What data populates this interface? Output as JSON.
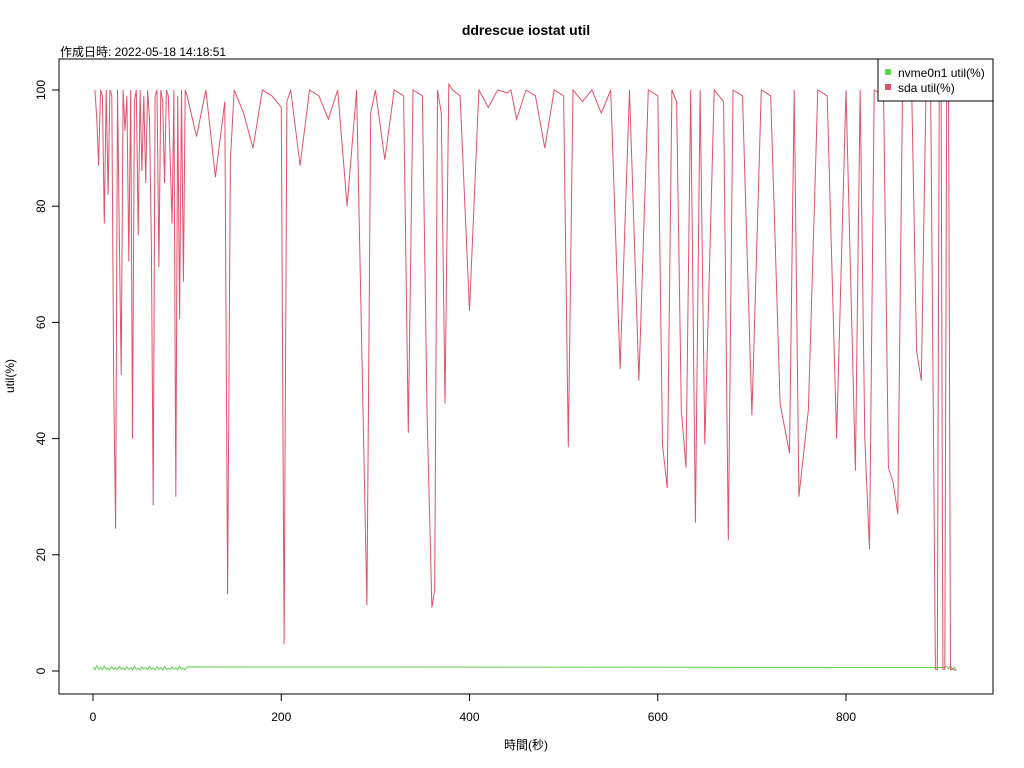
{
  "chart_data": {
    "type": "line",
    "title": "ddrescue iostat util",
    "subtitle": "作成日時: 2022-05-18 14:18:51",
    "xlabel": "時間(秒)",
    "ylabel": "util(%)",
    "xlim": [
      0,
      918
    ],
    "ylim": [
      0,
      100
    ],
    "x_ticks": [
      "0",
      "200",
      "400",
      "600",
      "800"
    ],
    "y_ticks": [
      "0",
      "20",
      "40",
      "60",
      "80",
      "100"
    ],
    "legend_position": "top-right",
    "series": [
      {
        "name": "nvme0n1 util(%)",
        "color": "#61d04f",
        "description": "near zero with small spikes",
        "points": [
          [
            0,
            0.7
          ],
          [
            2,
            0.2
          ],
          [
            4,
            0.9
          ],
          [
            6,
            0.3
          ],
          [
            8,
            0.6
          ],
          [
            10,
            0.2
          ],
          [
            12,
            0.8
          ],
          [
            14,
            0.3
          ],
          [
            16,
            0.5
          ],
          [
            18,
            0.2
          ],
          [
            20,
            0.7
          ],
          [
            22,
            0.3
          ],
          [
            24,
            0.6
          ],
          [
            26,
            0.2
          ],
          [
            28,
            0.8
          ],
          [
            30,
            0.3
          ],
          [
            32,
            0.5
          ],
          [
            34,
            0.2
          ],
          [
            36,
            0.7
          ],
          [
            38,
            0.3
          ],
          [
            40,
            0.6
          ],
          [
            42,
            0.2
          ],
          [
            44,
            0.8
          ],
          [
            46,
            0.3
          ],
          [
            48,
            0.5
          ],
          [
            50,
            0.2
          ],
          [
            52,
            0.7
          ],
          [
            54,
            0.3
          ],
          [
            56,
            0.6
          ],
          [
            58,
            0.2
          ],
          [
            60,
            0.8
          ],
          [
            62,
            0.3
          ],
          [
            64,
            0.5
          ],
          [
            66,
            0.2
          ],
          [
            68,
            0.7
          ],
          [
            70,
            0.3
          ],
          [
            72,
            0.6
          ],
          [
            74,
            0.2
          ],
          [
            76,
            0.8
          ],
          [
            78,
            0.3
          ],
          [
            80,
            0.5
          ],
          [
            82,
            0.2
          ],
          [
            84,
            0.7
          ],
          [
            86,
            0.3
          ],
          [
            88,
            0.6
          ],
          [
            90,
            0.2
          ],
          [
            92,
            0.8
          ],
          [
            94,
            0.3
          ],
          [
            96,
            0.5
          ],
          [
            98,
            0.2
          ],
          [
            100,
            0.7
          ],
          [
            905,
            0.6
          ],
          [
            907,
            0.8
          ],
          [
            909,
            0.4
          ],
          [
            911,
            0.9
          ],
          [
            913,
            0.3
          ],
          [
            915,
            0.6
          ],
          [
            917,
            0.2
          ]
        ]
      },
      {
        "name": "sda util(%)",
        "color": "#df536b",
        "description": "mostly 100 with frequent sharp dips",
        "points": [
          [
            2,
            100
          ],
          [
            4,
            95
          ],
          [
            6,
            87
          ],
          [
            8,
            100
          ],
          [
            10,
            99
          ],
          [
            12,
            77
          ],
          [
            14,
            100
          ],
          [
            16,
            82
          ],
          [
            18,
            100
          ],
          [
            20,
            99
          ],
          [
            22,
            49.5
          ],
          [
            24,
            24.5
          ],
          [
            26,
            100
          ],
          [
            28,
            74
          ],
          [
            30,
            51
          ],
          [
            32,
            100
          ],
          [
            34,
            93
          ],
          [
            36,
            99
          ],
          [
            38,
            70.5
          ],
          [
            40,
            100
          ],
          [
            42,
            40
          ],
          [
            44,
            98
          ],
          [
            46,
            100
          ],
          [
            48,
            75
          ],
          [
            50,
            100
          ],
          [
            52,
            86
          ],
          [
            54,
            99
          ],
          [
            56,
            84
          ],
          [
            58,
            100
          ],
          [
            60,
            95
          ],
          [
            62,
            73
          ],
          [
            64,
            28.5
          ],
          [
            66,
            99
          ],
          [
            68,
            100
          ],
          [
            70,
            69.5
          ],
          [
            72,
            100
          ],
          [
            74,
            98
          ],
          [
            76,
            84
          ],
          [
            78,
            100
          ],
          [
            80,
            99
          ],
          [
            82,
            88
          ],
          [
            84,
            77
          ],
          [
            86,
            100
          ],
          [
            88,
            30
          ],
          [
            90,
            99
          ],
          [
            92,
            60.5
          ],
          [
            94,
            100
          ],
          [
            96,
            67
          ],
          [
            98,
            100
          ],
          [
            100,
            99
          ],
          [
            110,
            92
          ],
          [
            120,
            100
          ],
          [
            130,
            85
          ],
          [
            140,
            98
          ],
          [
            143,
            13.2
          ],
          [
            146,
            88
          ],
          [
            150,
            100
          ],
          [
            160,
            96
          ],
          [
            170,
            90
          ],
          [
            180,
            100
          ],
          [
            190,
            99
          ],
          [
            200,
            97
          ],
          [
            203,
            4.6
          ],
          [
            206,
            98
          ],
          [
            210,
            100
          ],
          [
            220,
            87
          ],
          [
            230,
            100
          ],
          [
            240,
            99
          ],
          [
            250,
            95
          ],
          [
            260,
            100
          ],
          [
            270,
            80
          ],
          [
            280,
            100
          ],
          [
            291,
            11.3
          ],
          [
            295,
            96
          ],
          [
            300,
            100
          ],
          [
            310,
            88
          ],
          [
            320,
            100
          ],
          [
            330,
            99
          ],
          [
            335,
            41
          ],
          [
            340,
            100
          ],
          [
            350,
            99
          ],
          [
            355,
            44
          ],
          [
            360,
            10.9
          ],
          [
            363,
            14
          ],
          [
            366,
            100
          ],
          [
            370,
            96
          ],
          [
            374,
            46
          ],
          [
            378,
            101
          ],
          [
            382,
            100
          ],
          [
            390,
            99
          ],
          [
            400,
            62
          ],
          [
            410,
            100
          ],
          [
            420,
            97
          ],
          [
            430,
            100
          ],
          [
            440,
            99.5
          ],
          [
            444,
            100
          ],
          [
            450,
            95
          ],
          [
            460,
            100
          ],
          [
            470,
            99
          ],
          [
            480,
            90
          ],
          [
            490,
            100
          ],
          [
            500,
            99
          ],
          [
            505,
            38.5
          ],
          [
            510,
            100
          ],
          [
            520,
            98
          ],
          [
            530,
            100
          ],
          [
            540,
            96
          ],
          [
            550,
            100
          ],
          [
            560,
            52
          ],
          [
            570,
            100
          ],
          [
            580,
            50
          ],
          [
            590,
            100
          ],
          [
            600,
            99
          ],
          [
            605,
            39
          ],
          [
            610,
            31.5
          ],
          [
            615,
            100
          ],
          [
            620,
            98
          ],
          [
            625,
            45
          ],
          [
            630,
            35
          ],
          [
            635,
            100
          ],
          [
            640,
            25.5
          ],
          [
            645,
            100
          ],
          [
            650,
            39
          ],
          [
            660,
            100
          ],
          [
            670,
            98
          ],
          [
            675,
            22.5
          ],
          [
            680,
            100
          ],
          [
            690,
            99
          ],
          [
            700,
            44
          ],
          [
            710,
            100
          ],
          [
            720,
            99
          ],
          [
            730,
            46
          ],
          [
            740,
            37.5
          ],
          [
            745,
            100
          ],
          [
            750,
            30
          ],
          [
            760,
            45
          ],
          [
            770,
            100
          ],
          [
            780,
            99
          ],
          [
            790,
            40
          ],
          [
            800,
            100
          ],
          [
            810,
            34.5
          ],
          [
            815,
            100
          ],
          [
            820,
            40
          ],
          [
            825,
            21
          ],
          [
            830,
            100
          ],
          [
            840,
            99
          ],
          [
            845,
            35
          ],
          [
            850,
            32.5
          ],
          [
            855,
            27
          ],
          [
            860,
            100
          ],
          [
            870,
            98
          ],
          [
            875,
            55
          ],
          [
            880,
            50
          ],
          [
            885,
            100
          ],
          [
            890,
            99
          ],
          [
            895,
            0.3
          ],
          [
            897,
            0.2
          ],
          [
            899,
            100
          ],
          [
            901,
            99
          ],
          [
            903,
            0.4
          ],
          [
            905,
            0.3
          ],
          [
            907,
            100
          ],
          [
            909,
            98
          ],
          [
            911,
            0.2
          ],
          [
            913,
            0.3
          ],
          [
            915,
            0.2
          ],
          [
            917,
            0.1
          ]
        ]
      }
    ]
  }
}
